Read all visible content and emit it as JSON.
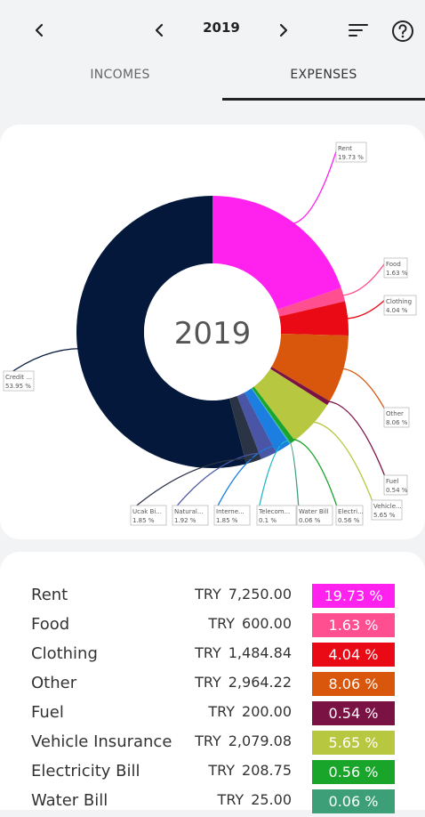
{
  "header": {
    "year": "2019",
    "icons": [
      "back-icon",
      "prev-year-icon",
      "next-year-icon",
      "sort-icon",
      "help-icon"
    ]
  },
  "tabs": [
    {
      "label": "INCOMES",
      "active": false
    },
    {
      "label": "EXPENSES",
      "active": true
    }
  ],
  "chart_data": {
    "type": "donut",
    "center_label": "2019",
    "slices": [
      {
        "label": "Rent",
        "chart_label": "Rent",
        "pct": 19.73,
        "pct_text": "19.73 %",
        "color": "#ff22ee"
      },
      {
        "label": "Food",
        "chart_label": "Food",
        "pct": 1.63,
        "pct_text": "1.63 %",
        "color": "#ff4f91"
      },
      {
        "label": "Clothing",
        "chart_label": "Clothing",
        "pct": 4.04,
        "pct_text": "4.04 %",
        "color": "#ea0a16"
      },
      {
        "label": "Other",
        "chart_label": "Other",
        "pct": 8.06,
        "pct_text": "8.06 %",
        "color": "#d8570d"
      },
      {
        "label": "Fuel",
        "chart_label": "Fuel",
        "pct": 0.54,
        "pct_text": "0.54 %",
        "color": "#7a1244"
      },
      {
        "label": "Vehicle Insurance",
        "chart_label": "Vehicle...",
        "pct": 5.65,
        "pct_text": "5.65 %",
        "color": "#b7c73f"
      },
      {
        "label": "Electricity Bill",
        "chart_label": "Electri...",
        "pct": 0.56,
        "pct_text": "0.56 %",
        "color": "#19a42a"
      },
      {
        "label": "Water Bill",
        "chart_label": "Water Bill",
        "pct": 0.06,
        "pct_text": "0.06 %",
        "color": "#3c9f78"
      },
      {
        "label": "Telecom",
        "chart_label": "Telecom...",
        "pct": 0.1,
        "pct_text": "0.1 %",
        "color": "#21b8c5"
      },
      {
        "label": "Internet",
        "chart_label": "Interne...",
        "pct": 1.85,
        "pct_text": "1.85 %",
        "color": "#1b7ee0"
      },
      {
        "label": "Natural Gas",
        "chart_label": "Natural...",
        "pct": 1.92,
        "pct_text": "1.92 %",
        "color": "#4a55a6"
      },
      {
        "label": "Ucak Bileti",
        "chart_label": "Ucak Bi...",
        "pct": 1.85,
        "pct_text": "1.85 %",
        "color": "#2b3444"
      },
      {
        "label": "Credit",
        "chart_label": "Credit ...",
        "pct": 53.95,
        "pct_text": "53.95 %",
        "color": "#03183a"
      }
    ]
  },
  "table": {
    "rows": [
      {
        "name": "Rent",
        "currency": "TRY",
        "amount": "7,250.00",
        "pct": "19.73 %",
        "color": "#ff22ee"
      },
      {
        "name": "Food",
        "currency": "TRY",
        "amount": "600.00",
        "pct": "1.63 %",
        "color": "#ff4f91"
      },
      {
        "name": "Clothing",
        "currency": "TRY",
        "amount": "1,484.84",
        "pct": "4.04 %",
        "color": "#ea0a16"
      },
      {
        "name": "Other",
        "currency": "TRY",
        "amount": "2,964.22",
        "pct": "8.06 %",
        "color": "#d8570d"
      },
      {
        "name": "Fuel",
        "currency": "TRY",
        "amount": "200.00",
        "pct": "0.54 %",
        "color": "#7a1244"
      },
      {
        "name": "Vehicle Insurance",
        "currency": "TRY",
        "amount": "2,079.08",
        "pct": "5.65 %",
        "color": "#b7c73f"
      },
      {
        "name": "Electricity Bill",
        "currency": "TRY",
        "amount": "208.75",
        "pct": "0.56 %",
        "color": "#19a42a"
      },
      {
        "name": "Water Bill",
        "currency": "TRY",
        "amount": "25.00",
        "pct": "0.06 %",
        "color": "#3c9f78"
      }
    ]
  }
}
